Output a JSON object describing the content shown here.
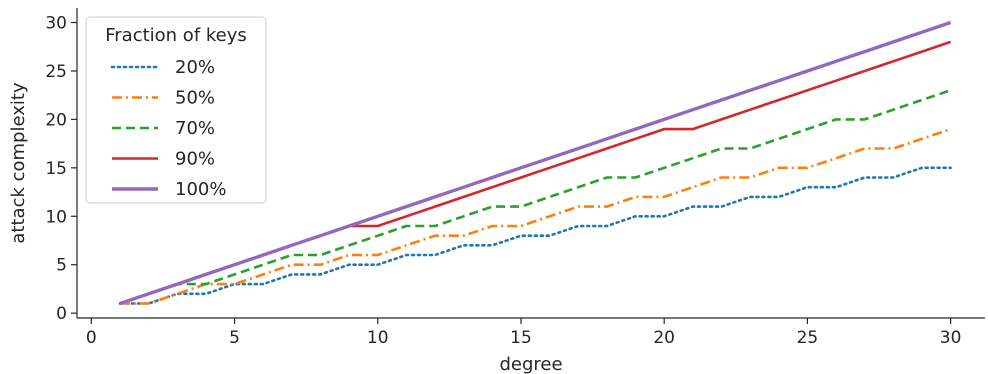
{
  "chart_data": {
    "type": "line",
    "xlabel": "degree",
    "ylabel": "attack complexity",
    "xlim": [
      -0.5,
      31.2
    ],
    "ylim": [
      -0.5,
      31.5
    ],
    "xticks": [
      0,
      5,
      10,
      15,
      20,
      25,
      30
    ],
    "yticks": [
      0,
      5,
      10,
      15,
      20,
      25,
      30
    ],
    "grid": false,
    "legend": {
      "title": "Fraction of keys",
      "position": "top-left"
    },
    "x": [
      1,
      2,
      3,
      4,
      5,
      6,
      7,
      8,
      9,
      10,
      11,
      12,
      13,
      14,
      15,
      16,
      17,
      18,
      19,
      20,
      21,
      22,
      23,
      24,
      25,
      26,
      27,
      28,
      29,
      30
    ],
    "series": [
      {
        "name": "20%",
        "color": "#1f77b4",
        "dash": "dotted",
        "values": [
          1,
          1,
          2,
          2,
          3,
          3,
          4,
          4,
          5,
          5,
          6,
          6,
          7,
          7,
          8,
          8,
          9,
          9,
          10,
          10,
          11,
          11,
          12,
          12,
          13,
          13,
          14,
          14,
          15,
          15
        ]
      },
      {
        "name": "50%",
        "color": "#ff7f0e",
        "dash": "dashdot",
        "values": [
          1,
          1,
          2,
          3,
          3,
          4,
          5,
          5,
          6,
          6,
          7,
          8,
          8,
          9,
          9,
          10,
          11,
          11,
          12,
          12,
          13,
          14,
          14,
          15,
          15,
          16,
          17,
          17,
          18,
          19
        ]
      },
      {
        "name": "70%",
        "color": "#2ca02c",
        "dash": "dashed",
        "values": [
          1,
          2,
          3,
          3,
          4,
          5,
          6,
          6,
          7,
          8,
          9,
          9,
          10,
          11,
          11,
          12,
          13,
          14,
          14,
          15,
          16,
          17,
          17,
          18,
          19,
          20,
          20,
          21,
          22,
          23
        ]
      },
      {
        "name": "90%",
        "color": "#d62728",
        "dash": "solid",
        "values": [
          1,
          2,
          3,
          4,
          5,
          6,
          7,
          8,
          9,
          9,
          10,
          11,
          12,
          13,
          14,
          15,
          16,
          17,
          18,
          19,
          19,
          20,
          21,
          22,
          23,
          24,
          25,
          26,
          27,
          28
        ]
      },
      {
        "name": "100%",
        "color": "#9467bd",
        "dash": "solid-thick",
        "values": [
          1,
          2,
          3,
          4,
          5,
          6,
          7,
          8,
          9,
          10,
          11,
          12,
          13,
          14,
          15,
          16,
          17,
          18,
          19,
          20,
          21,
          22,
          23,
          24,
          25,
          26,
          27,
          28,
          29,
          30
        ]
      }
    ]
  }
}
